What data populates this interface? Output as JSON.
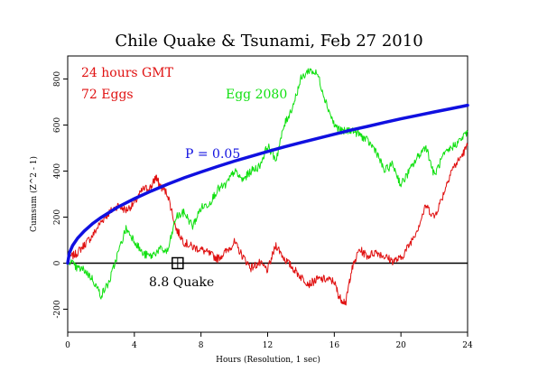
{
  "chart_data": {
    "type": "line",
    "title": "Chile Quake & Tsunami, Feb 27 2010",
    "xlabel": "Hours (Resolution, 1 sec)",
    "ylabel": "Cumsum (Z^2 - 1)",
    "xlim": [
      0,
      24
    ],
    "ylim": [
      -300,
      900
    ],
    "xticks": [
      "0",
      "4",
      "8",
      "12",
      "16",
      "20",
      "24"
    ],
    "yticks": [
      "-200",
      "0",
      "200",
      "400",
      "600",
      "800"
    ],
    "grid": false,
    "annotations": {
      "subtitle_time": "24 hours GMT",
      "subtitle_eggs": "72 Eggs",
      "series_label": "Egg 2080",
      "significance_label": "P = 0.05",
      "event_label": "8.8 Quake"
    },
    "event_marker": {
      "x": 6.6,
      "y": 0
    },
    "colors": {
      "red_series": "#e01010",
      "green_series": "#10e010",
      "blue_curve": "#1010e0",
      "zero_line": "#000000",
      "annotation_red": "#e01010",
      "annotation_green": "#10e010",
      "annotation_blue": "#1010e0"
    },
    "series": [
      {
        "name": "72 Eggs",
        "color": "#e01010",
        "x": [
          0,
          0.5,
          1,
          1.5,
          2,
          2.5,
          3,
          3.5,
          4,
          4.5,
          5,
          5.3,
          5.5,
          6,
          6.5,
          7,
          7.5,
          8,
          8.5,
          9,
          9.5,
          10,
          10.5,
          11,
          11.5,
          12,
          12.5,
          13,
          13.5,
          14,
          14.5,
          15,
          15.5,
          16,
          16.3,
          16.7,
          17,
          17.5,
          18,
          18.5,
          19,
          19.5,
          20,
          20.5,
          21,
          21.5,
          22,
          22.5,
          23,
          23.5,
          24
        ],
        "y": [
          20,
          40,
          80,
          120,
          180,
          220,
          250,
          230,
          260,
          320,
          330,
          375,
          340,
          300,
          150,
          90,
          70,
          60,
          40,
          20,
          50,
          90,
          30,
          -20,
          0,
          -30,
          80,
          20,
          -20,
          -60,
          -90,
          -70,
          -70,
          -80,
          -150,
          -170,
          -40,
          60,
          30,
          50,
          30,
          10,
          20,
          80,
          150,
          250,
          200,
          290,
          400,
          450,
          510
        ]
      },
      {
        "name": "Egg 2080",
        "color": "#10e010",
        "x": [
          0,
          0.5,
          1,
          1.5,
          2,
          2.5,
          3,
          3.5,
          4,
          4.5,
          5,
          5.5,
          6,
          6.5,
          7,
          7.5,
          8,
          8.5,
          9,
          9.5,
          10,
          10.5,
          11,
          11.5,
          12,
          12.5,
          13,
          13.5,
          14,
          14.5,
          15,
          15.5,
          16,
          16.5,
          17,
          17.5,
          18,
          18.5,
          19,
          19.5,
          20,
          20.5,
          21,
          21.5,
          22,
          22.5,
          23,
          23.5,
          24
        ],
        "y": [
          20,
          -20,
          -30,
          -70,
          -140,
          -80,
          40,
          150,
          100,
          40,
          30,
          60,
          50,
          200,
          220,
          160,
          240,
          260,
          320,
          340,
          400,
          360,
          400,
          420,
          510,
          450,
          600,
          680,
          800,
          840,
          820,
          700,
          600,
          570,
          580,
          560,
          530,
          490,
          400,
          430,
          340,
          400,
          460,
          510,
          380,
          460,
          500,
          530,
          570
        ]
      }
    ],
    "significance_curve": {
      "name": "P = 0.05",
      "color": "#1010e0",
      "x": [
        0,
        0.1,
        0.3,
        0.6,
        1,
        1.5,
        2,
        3,
        4,
        5,
        6,
        7,
        8,
        9,
        10,
        11,
        12,
        13,
        14,
        15,
        16,
        17,
        18,
        19,
        20,
        21,
        22,
        23,
        24
      ],
      "y": [
        0,
        44,
        77,
        109,
        140,
        172,
        198,
        243,
        280,
        313,
        343,
        371,
        396,
        420,
        443,
        464,
        485,
        505,
        524,
        542,
        560,
        578,
        594,
        611,
        627,
        642,
        657,
        671,
        686
      ]
    }
  }
}
